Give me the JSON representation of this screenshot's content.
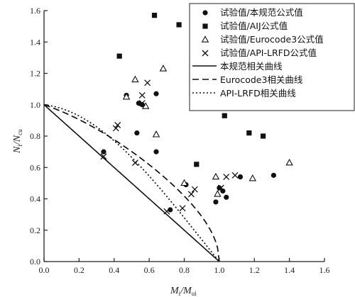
{
  "chart_data": {
    "type": "scatter",
    "xlabel": {
      "main": "M",
      "sub1": "i",
      "slash": "/",
      "main2": "M",
      "sub2": "ui"
    },
    "ylabel": {
      "main": "N",
      "sub1": "i",
      "slash": "/",
      "main2": "N",
      "sub2": "cu"
    },
    "xlim": [
      0,
      1.6
    ],
    "ylim": [
      0,
      1.6
    ],
    "xticks": [
      "0.0",
      "0.2",
      "0.4",
      "0.6",
      "0.8",
      "1.0",
      "1.2",
      "1.4",
      "1.6"
    ],
    "yticks": [
      "0.0",
      "0.2",
      "0.4",
      "0.6",
      "0.8",
      "1.0",
      "1.2",
      "1.4",
      "1.6"
    ],
    "legend_position": "top-right",
    "series": [
      {
        "name": "试验值/本规范公式值",
        "marker": "filled-circle",
        "points": [
          [
            0.34,
            0.7
          ],
          [
            0.47,
            1.06
          ],
          [
            0.54,
            1.01
          ],
          [
            0.56,
            1.0
          ],
          [
            0.53,
            0.82
          ],
          [
            0.64,
            1.07
          ],
          [
            0.64,
            0.7
          ],
          [
            0.72,
            0.33
          ],
          [
            0.81,
            0.49
          ],
          [
            0.98,
            0.38
          ],
          [
            1.0,
            0.47
          ],
          [
            1.02,
            0.45
          ],
          [
            1.04,
            0.41
          ],
          [
            1.12,
            0.54
          ],
          [
            1.31,
            0.55
          ]
        ]
      },
      {
        "name": "试验值/AIJ公式值",
        "marker": "filled-square",
        "points": [
          [
            0.43,
            1.31
          ],
          [
            0.63,
            1.57
          ],
          [
            0.77,
            1.51
          ],
          [
            0.87,
            0.62
          ],
          [
            1.03,
            0.93
          ],
          [
            1.17,
            0.82
          ],
          [
            1.25,
            0.8
          ]
        ]
      },
      {
        "name": "试验值/Eurocode3公式值",
        "marker": "open-triangle",
        "points": [
          [
            0.47,
            1.05
          ],
          [
            0.52,
            1.16
          ],
          [
            0.58,
            0.99
          ],
          [
            0.64,
            0.81
          ],
          [
            0.68,
            1.23
          ],
          [
            0.8,
            0.5
          ],
          [
            0.98,
            0.54
          ],
          [
            0.99,
            0.43
          ],
          [
            1.19,
            0.53
          ],
          [
            1.4,
            0.63
          ]
        ]
      },
      {
        "name": "试验值/API-LRFD公式值",
        "marker": "cross",
        "points": [
          [
            0.34,
            0.67
          ],
          [
            0.41,
            0.85
          ],
          [
            0.42,
            0.87
          ],
          [
            0.52,
            0.63
          ],
          [
            0.56,
            1.06
          ],
          [
            0.59,
            1.14
          ],
          [
            0.56,
            1.01
          ],
          [
            0.7,
            0.32
          ],
          [
            0.79,
            0.34
          ],
          [
            0.84,
            0.43
          ],
          [
            0.86,
            0.46
          ],
          [
            1.01,
            0.47
          ],
          [
            1.04,
            0.54
          ],
          [
            1.09,
            0.55
          ]
        ]
      },
      {
        "name": "本规范相关曲线",
        "style": "solid",
        "curve": "linear"
      },
      {
        "name": "Eurocode3相关曲线",
        "style": "dashed",
        "curve": "eurocode"
      },
      {
        "name": "API-LRFD相关曲线",
        "style": "dotted",
        "curve": "cosine"
      }
    ]
  }
}
